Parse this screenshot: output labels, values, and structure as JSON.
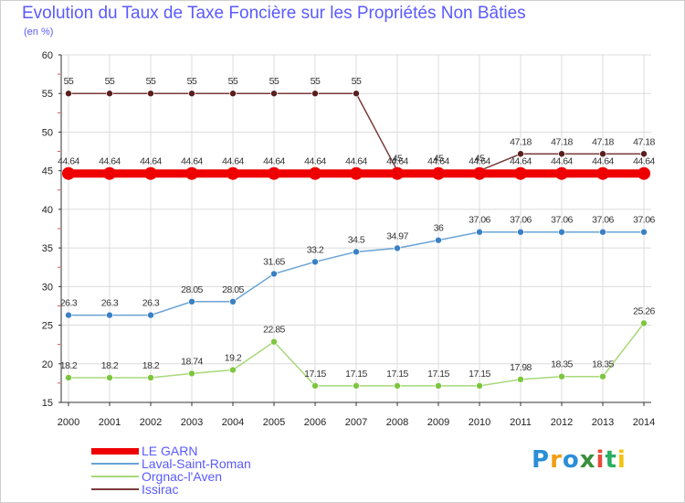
{
  "header": {
    "title": "Evolution du Taux de Taxe Foncière sur les Propriétés Non Bâties",
    "subtitle": "(en %)"
  },
  "logo": {
    "text": "Proxiti"
  },
  "chart_data": {
    "type": "line",
    "title": "Evolution du Taux de Taxe Foncière sur les Propriétés Non Bâties",
    "ylabel": "(en %)",
    "xlabel": "",
    "ylim": [
      15,
      60
    ],
    "yticks": [
      15,
      20,
      25,
      30,
      35,
      40,
      45,
      50,
      55,
      60
    ],
    "grid": true,
    "legend_position": "bottom-left",
    "categories": [
      "2000",
      "2001",
      "2002",
      "2003",
      "2004",
      "2005",
      "2006",
      "2007",
      "2008",
      "2009",
      "2010",
      "2011",
      "2012",
      "2013",
      "2014"
    ],
    "series": [
      {
        "name": "LE GARN",
        "color": "#ee0000",
        "thick": true,
        "values": [
          44.64,
          44.64,
          44.64,
          44.64,
          44.64,
          44.64,
          44.64,
          44.64,
          44.64,
          44.64,
          44.64,
          44.64,
          44.64,
          44.64,
          44.64
        ],
        "labels": [
          "44.64",
          "44.64",
          "44.64",
          "44.64",
          "44.64",
          "44.64",
          "44.64",
          "44.64",
          "44.64",
          "44.64",
          "44.64",
          "44.64",
          "44.64",
          "44.64",
          "44.64"
        ]
      },
      {
        "name": "Laval-Saint-Roman",
        "color": "#6aa3d5",
        "marker": "#3a80c4",
        "values": [
          26.3,
          26.3,
          26.3,
          28.05,
          28.05,
          31.65,
          33.2,
          34.5,
          34.97,
          36,
          37.06,
          37.06,
          37.06,
          37.06,
          37.06
        ],
        "labels": [
          "26.3",
          "26.3",
          "26.3",
          "28.05",
          "28.05",
          "31.65",
          "33.2",
          "34.5",
          "34.97",
          "36",
          "37.06",
          "37.06",
          "37.06",
          "37.06",
          "37.06"
        ]
      },
      {
        "name": "Orgnac-l'Aven",
        "color": "#a8d87a",
        "marker": "#7cc63e",
        "values": [
          18.2,
          18.2,
          18.2,
          18.74,
          19.2,
          22.85,
          17.15,
          17.15,
          17.15,
          17.15,
          17.15,
          17.98,
          18.35,
          18.35,
          25.26
        ],
        "labels": [
          "18.2",
          "18.2",
          "18.2",
          "18.74",
          "19.2",
          "22.85",
          "17.15",
          "17.15",
          "17.15",
          "17.15",
          "17.15",
          "17.98",
          "18.35",
          "18.35",
          "25.26"
        ]
      },
      {
        "name": "Issirac",
        "color": "#7a3b3b",
        "marker": "#5a1e1e",
        "values": [
          55,
          55,
          55,
          55,
          55,
          55,
          55,
          55,
          45,
          45,
          45,
          47.18,
          47.18,
          47.18,
          47.18
        ],
        "labels": [
          "55",
          "55",
          "55",
          "55",
          "55",
          "55",
          "55",
          "55",
          "45",
          "45",
          "45",
          "47.18",
          "47.18",
          "47.18",
          "47.18"
        ]
      }
    ]
  }
}
